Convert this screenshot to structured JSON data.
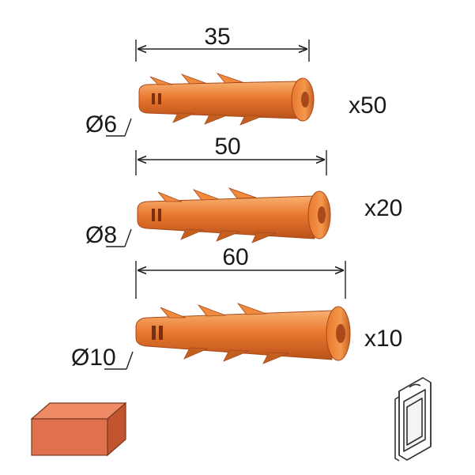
{
  "plugs": [
    {
      "length": "35",
      "diameter_symbol": "Ø",
      "diameter_value": "6",
      "quantity": "x50"
    },
    {
      "length": "50",
      "diameter_symbol": "Ø",
      "diameter_value": "8",
      "quantity": "x20"
    },
    {
      "length": "60",
      "diameter_symbol": "Ø",
      "diameter_value": "10",
      "quantity": "x10"
    }
  ],
  "icons": {
    "material": "brick-icon",
    "packaging": "blister-pack-icon"
  },
  "colors": {
    "plug_orange": "#e8772e",
    "plug_light": "#f6a662",
    "plug_dark": "#b9521a",
    "brick": "#e0714e",
    "line": "#222222"
  }
}
